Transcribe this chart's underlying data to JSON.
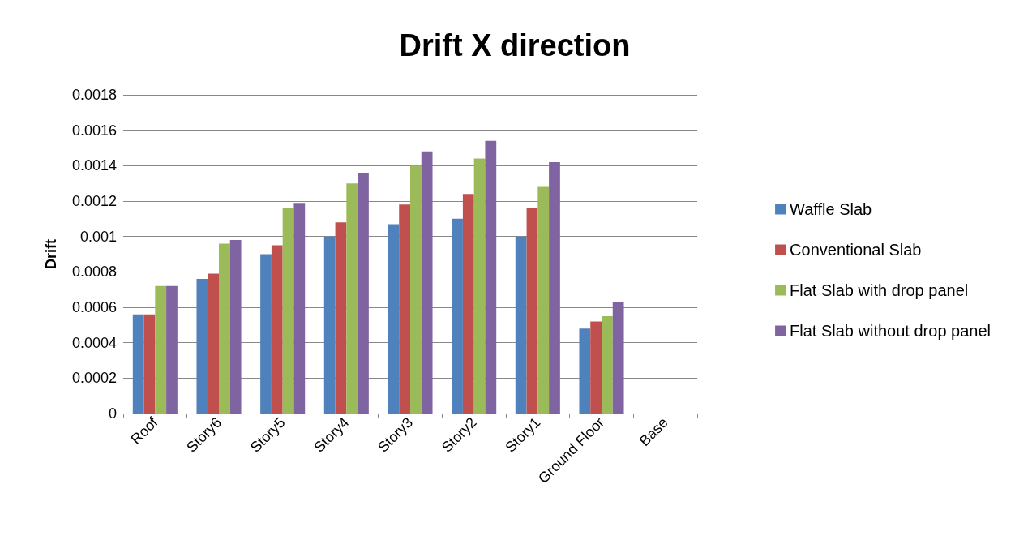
{
  "chart_data": {
    "type": "bar",
    "title": "Drift X direction",
    "ylabel": "Drift",
    "categories": [
      "Roof",
      "Story6",
      "Story5",
      "Story4",
      "Story3",
      "Story2",
      "Story1",
      "Ground Floor",
      "Base"
    ],
    "series": [
      {
        "name": "Waffle Slab",
        "color": "#4f81bd",
        "values": [
          0.00056,
          0.00076,
          0.0009,
          0.001,
          0.00107,
          0.0011,
          0.001,
          0.00048,
          0
        ]
      },
      {
        "name": "Conventional Slab",
        "color": "#c0504d",
        "values": [
          0.00056,
          0.00079,
          0.00095,
          0.00108,
          0.00118,
          0.00124,
          0.00116,
          0.00052,
          0
        ]
      },
      {
        "name": "Flat Slab with drop panel",
        "color": "#9bbb59",
        "values": [
          0.00072,
          0.00096,
          0.00116,
          0.0013,
          0.0014,
          0.00144,
          0.00128,
          0.00055,
          0
        ]
      },
      {
        "name": "Flat Slab without drop panel",
        "color": "#8064a2",
        "values": [
          0.00072,
          0.00098,
          0.00119,
          0.00136,
          0.00148,
          0.00154,
          0.00142,
          0.00063,
          0
        ]
      }
    ],
    "ylim": [
      0,
      0.0018
    ],
    "yticks": [
      0,
      0.0002,
      0.0004,
      0.0006,
      0.0008,
      0.001,
      0.0012,
      0.0014,
      0.0016,
      0.0018
    ],
    "grid": "y",
    "legend": "right"
  }
}
